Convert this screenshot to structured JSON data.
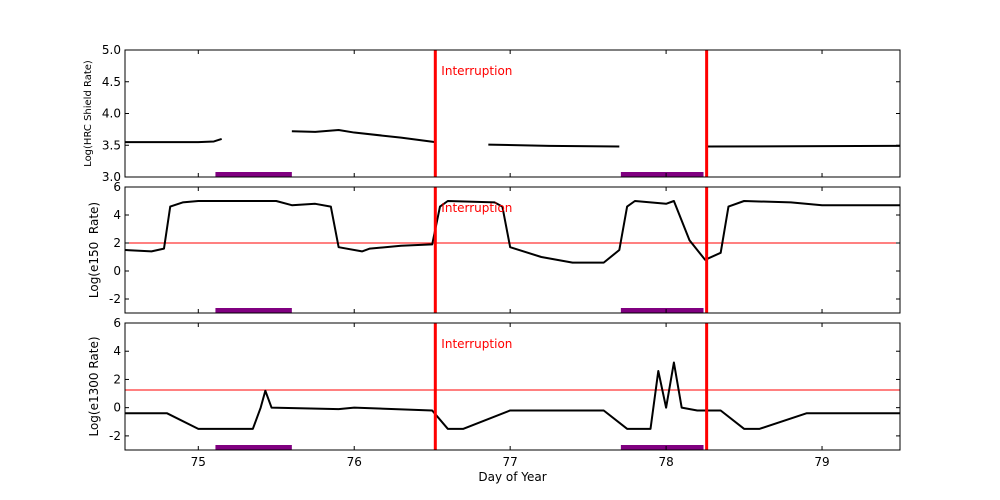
{
  "chart_data": [
    {
      "type": "line",
      "ylabel": "Log(HRC Shield Rate)",
      "ylim": [
        3.0,
        5.0
      ],
      "yticks": [
        "3.0",
        "3.5",
        "4.0",
        "4.5",
        "5.0"
      ],
      "xlim": [
        74.53,
        79.5
      ],
      "series": [
        {
          "segments": [
            [
              [
                74.53,
                3.55
              ],
              [
                75.0,
                3.55
              ],
              [
                75.1,
                3.56
              ],
              [
                75.15,
                3.6
              ]
            ],
            [
              [
                75.6,
                3.72
              ],
              [
                75.75,
                3.71
              ],
              [
                75.9,
                3.74
              ],
              [
                76.0,
                3.7
              ],
              [
                76.3,
                3.62
              ],
              [
                76.52,
                3.55
              ]
            ],
            [
              [
                76.86,
                3.51
              ],
              [
                77.25,
                3.49
              ],
              [
                77.7,
                3.48
              ]
            ],
            [
              [
                78.26,
                3.48
              ],
              [
                79.5,
                3.49
              ]
            ]
          ]
        }
      ],
      "threshold": null,
      "interruptions": [
        76.52,
        78.26
      ],
      "interruption_label": "Interruption",
      "shaded_periods": [
        [
          75.11,
          75.6
        ],
        [
          77.71,
          78.24
        ]
      ]
    },
    {
      "type": "line",
      "ylabel": "Log(e150  Rate)",
      "ylim": [
        -3,
        6
      ],
      "yticks": [
        "-2",
        "0",
        "2",
        "4",
        "6"
      ],
      "xlim": [
        74.53,
        79.5
      ],
      "series": [
        {
          "segments": [
            [
              [
                74.53,
                1.5
              ],
              [
                74.7,
                1.4
              ],
              [
                74.78,
                1.6
              ],
              [
                74.82,
                4.6
              ],
              [
                74.9,
                4.9
              ],
              [
                75.0,
                5.0
              ],
              [
                75.5,
                5.0
              ],
              [
                75.6,
                4.7
              ],
              [
                75.75,
                4.8
              ],
              [
                75.85,
                4.6
              ],
              [
                75.9,
                1.7
              ],
              [
                76.05,
                1.4
              ],
              [
                76.1,
                1.6
              ],
              [
                76.3,
                1.8
              ],
              [
                76.5,
                1.9
              ],
              [
                76.55,
                4.6
              ],
              [
                76.6,
                5.0
              ],
              [
                76.9,
                4.9
              ],
              [
                76.95,
                4.6
              ],
              [
                77.0,
                1.7
              ],
              [
                77.2,
                1.0
              ],
              [
                77.4,
                0.6
              ],
              [
                77.6,
                0.6
              ],
              [
                77.7,
                1.5
              ],
              [
                77.75,
                4.6
              ],
              [
                77.8,
                5.0
              ],
              [
                78.0,
                4.8
              ],
              [
                78.05,
                5.0
              ],
              [
                78.15,
                2.2
              ],
              [
                78.25,
                0.8
              ],
              [
                78.35,
                1.3
              ],
              [
                78.4,
                4.6
              ],
              [
                78.5,
                5.0
              ],
              [
                78.8,
                4.9
              ],
              [
                79.0,
                4.7
              ],
              [
                79.5,
                4.7
              ]
            ]
          ]
        }
      ],
      "threshold": 2.0,
      "interruptions": [
        76.52,
        78.26
      ],
      "interruption_label": "Interruption",
      "shaded_periods": [
        [
          75.11,
          75.6
        ],
        [
          77.71,
          78.24
        ]
      ]
    },
    {
      "type": "line",
      "ylabel": "Log(e1300 Rate)",
      "xlabel": "Day of Year",
      "ylim": [
        -3,
        6
      ],
      "yticks": [
        "-2",
        "0",
        "2",
        "4",
        "6"
      ],
      "xlim": [
        74.53,
        79.5
      ],
      "xticks": [
        "75",
        "76",
        "77",
        "78",
        "79"
      ],
      "series": [
        {
          "segments": [
            [
              [
                74.53,
                -0.4
              ],
              [
                74.8,
                -0.4
              ],
              [
                75.0,
                -1.5
              ],
              [
                75.35,
                -1.5
              ],
              [
                75.4,
                0
              ],
              [
                75.43,
                1.2
              ],
              [
                75.47,
                0
              ],
              [
                75.9,
                -0.1
              ],
              [
                76.0,
                0
              ],
              [
                76.5,
                -0.2
              ],
              [
                76.6,
                -1.5
              ],
              [
                76.7,
                -1.5
              ],
              [
                77.0,
                -0.2
              ],
              [
                77.6,
                -0.2
              ],
              [
                77.75,
                -1.5
              ],
              [
                77.9,
                -1.5
              ],
              [
                77.95,
                2.6
              ],
              [
                78.0,
                0
              ],
              [
                78.05,
                3.2
              ],
              [
                78.1,
                0
              ],
              [
                78.2,
                -0.2
              ],
              [
                78.35,
                -0.2
              ],
              [
                78.5,
                -1.5
              ],
              [
                78.6,
                -1.5
              ],
              [
                78.9,
                -0.4
              ],
              [
                79.5,
                -0.4
              ]
            ]
          ]
        }
      ],
      "threshold": 1.25,
      "interruptions": [
        76.52,
        78.26
      ],
      "interruption_label": "Interruption",
      "shaded_periods": [
        [
          75.11,
          75.6
        ],
        [
          77.71,
          78.24
        ]
      ]
    }
  ],
  "colors": {
    "interruption": "#ff0000",
    "threshold": "#ff0000",
    "shaded": "#800080",
    "series": "#000000"
  }
}
